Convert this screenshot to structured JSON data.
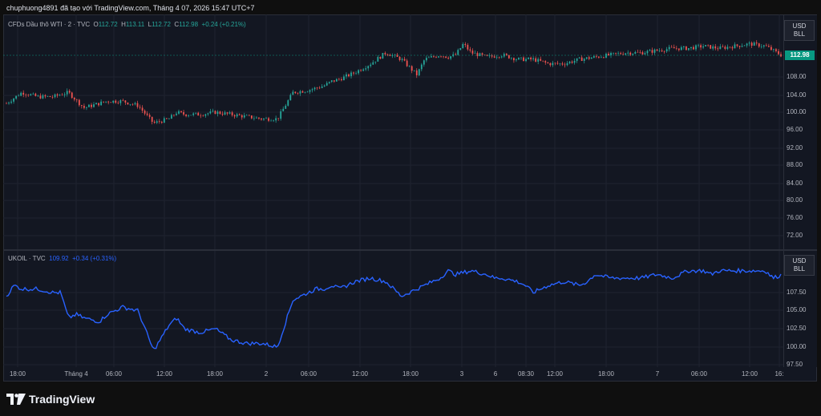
{
  "header": {
    "text": "chuphuong4891 đã tạo với TradingView.com, Tháng 4 07, 2026 15:47 UTC+7"
  },
  "pane1": {
    "legend": {
      "symbol": "CFDs Dầu thô WTI · 2 · TVC",
      "o_label": "O",
      "o": "112.72",
      "h_label": "H",
      "h": "113.11",
      "l_label": "L",
      "l": "112.72",
      "c_label": "C",
      "c": "112.98",
      "change": "+0.24 (+0.21%)"
    },
    "currency": "USD",
    "unit": "BLL",
    "last_price": "112.98",
    "ticks": [
      "108.00",
      "104.00",
      "100.00",
      "96.00",
      "92.00",
      "88.00",
      "84.00",
      "80.00",
      "76.00",
      "72.00"
    ],
    "colors": {
      "up": "#26a69a",
      "down": "#ef5350"
    }
  },
  "pane2": {
    "legend": {
      "symbol": "UKOIL · TVC",
      "value": "109.92",
      "change": "+0.34 (+0.31%)"
    },
    "currency": "USD",
    "unit": "BLL",
    "ticks": [
      "107.50",
      "105.00",
      "102.50",
      "100.00",
      "97.50"
    ],
    "colors": {
      "line": "#2962ff"
    }
  },
  "time_axis": [
    "18:00",
    "Tháng 4",
    "06:00",
    "12:00",
    "18:00",
    "2",
    "06:00",
    "12:00",
    "18:00",
    "3",
    "6",
    "08:30",
    "12:00",
    "18:00",
    "7",
    "06:00",
    "12:00",
    "16:"
  ],
  "brand": {
    "name": "TradingView"
  },
  "chart_data": [
    {
      "type": "line",
      "title": "CFDs Dầu thô WTI · 2 · TVC",
      "style": "candlestick",
      "xlabel": "",
      "ylabel": "",
      "ylim": [
        69,
        120
      ],
      "x": [
        0,
        2,
        4,
        6,
        8,
        10,
        11,
        12,
        13,
        15,
        17,
        19,
        21,
        22,
        23,
        25,
        27,
        29,
        31,
        33,
        35,
        37,
        39,
        41,
        42,
        43,
        45,
        47,
        49,
        51,
        53,
        54,
        55,
        56,
        57,
        58,
        59,
        60,
        62,
        64,
        66,
        68,
        70,
        72,
        74,
        76,
        78,
        80,
        82,
        84,
        86,
        88,
        90,
        92,
        94,
        96,
        98,
        100
      ],
      "values": [
        102,
        104.5,
        103.5,
        103.5,
        104.5,
        101,
        101.5,
        102,
        102.5,
        102.5,
        101.5,
        97.5,
        98.5,
        100,
        99.5,
        99.5,
        100,
        99.5,
        99,
        98.5,
        98.5,
        104.5,
        105,
        106,
        107,
        107.5,
        109,
        111,
        113.5,
        112,
        108.5,
        112,
        112.5,
        113,
        112.5,
        113,
        115.5,
        113.5,
        112.5,
        113,
        112,
        112,
        111,
        111,
        112,
        112.5,
        113,
        113.5,
        113.5,
        114,
        114.5,
        114.5,
        115,
        114.5,
        115,
        115.5,
        115,
        112.98
      ],
      "grid": true,
      "legend_position": "top-left"
    },
    {
      "type": "line",
      "title": "UKOIL · TVC",
      "xlabel": "",
      "ylabel": "",
      "ylim": [
        97,
        110.5
      ],
      "x": [
        0,
        1,
        2,
        4,
        6,
        7,
        8,
        9,
        10,
        12,
        13,
        15,
        17,
        19,
        21,
        22,
        23,
        25,
        27,
        29,
        31,
        33,
        35,
        37,
        39,
        40,
        41,
        42,
        43,
        45,
        47,
        49,
        51,
        53,
        55,
        56,
        57,
        58,
        60,
        62,
        63,
        64,
        66,
        67,
        68,
        70,
        72,
        74,
        75,
        76,
        78,
        80,
        82,
        84,
        86,
        88,
        90,
        91,
        92,
        94,
        96,
        98,
        99,
        100
      ],
      "values": [
        107,
        108.5,
        108,
        108,
        107.5,
        107.5,
        104,
        104.5,
        104,
        103.5,
        104.5,
        105.5,
        105,
        99.5,
        103,
        104,
        102.5,
        102,
        102.5,
        101,
        100.5,
        100.5,
        100,
        106.5,
        107.5,
        108,
        108,
        108.5,
        108,
        109,
        109.5,
        109,
        107,
        108,
        109,
        109.5,
        110.5,
        110,
        110.5,
        110,
        109.5,
        109.5,
        109,
        108.5,
        107.5,
        108.5,
        109,
        108.5,
        109,
        110,
        109.5,
        109.5,
        109.5,
        110,
        109.5,
        110.5,
        110.5,
        110,
        110.5,
        110.5,
        110.5,
        110.5,
        109.5,
        109.92
      ],
      "grid": true,
      "legend_position": "top-left"
    }
  ]
}
